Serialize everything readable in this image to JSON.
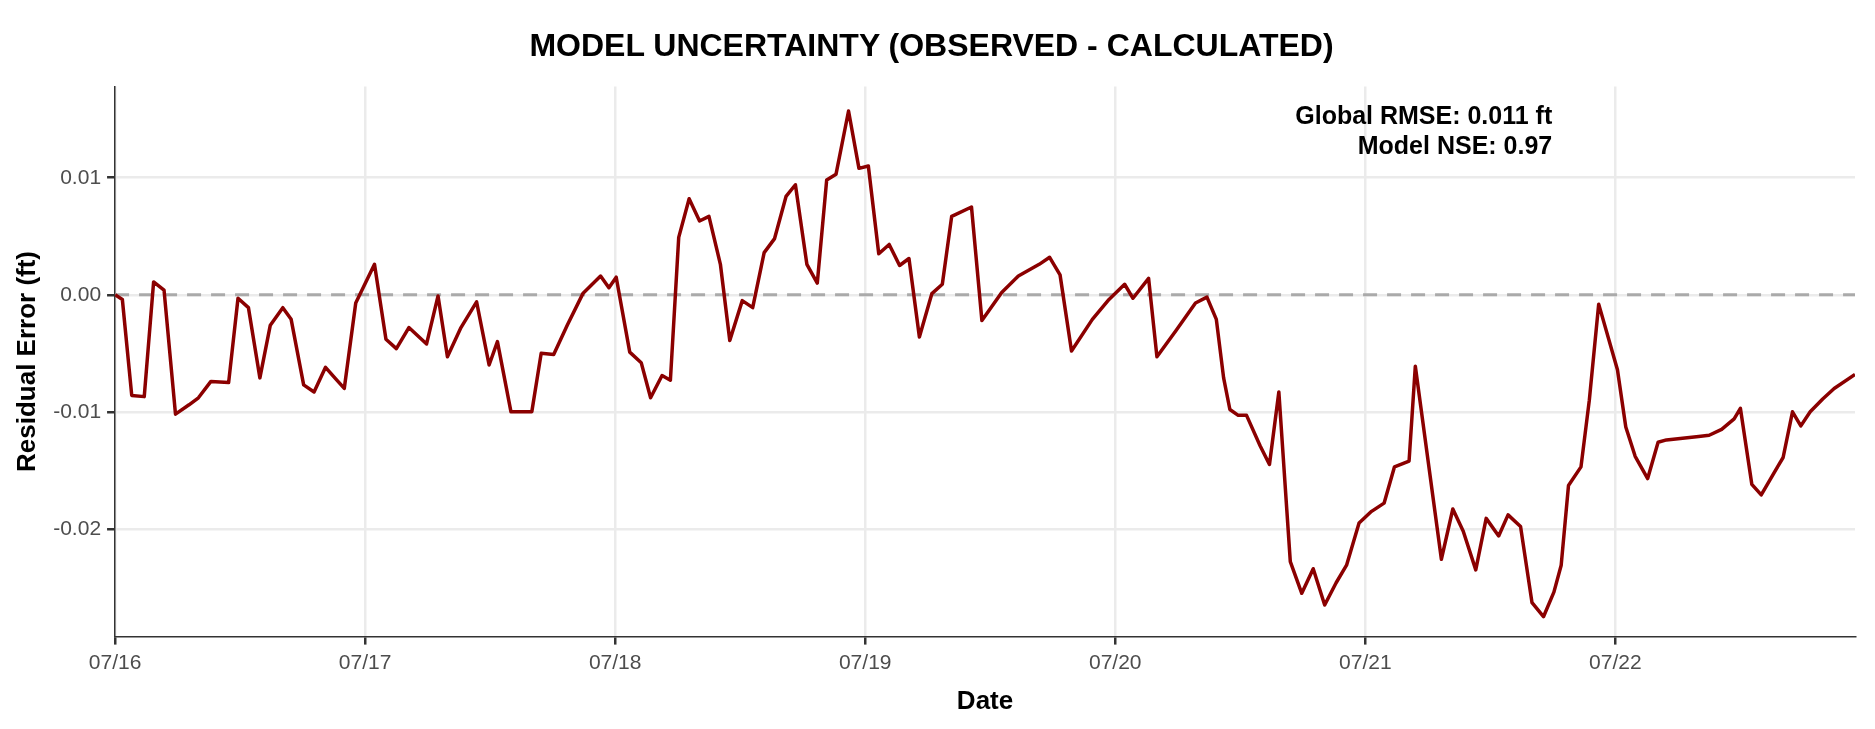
{
  "chart_data": {
    "type": "line",
    "title": "MODEL UNCERTAINTY (OBSERVED - CALCULATED)",
    "xlabel": "Date",
    "ylabel": "Residual Error (ft)",
    "annotations": [
      "Global RMSE: 0.011 ft",
      "Model NSE: 0.97"
    ],
    "x": [
      "--07-16T00:00",
      "--07-16T00:42",
      "--07-16T01:36",
      "--07-16T02:48",
      "--07-16T03:42",
      "--07-16T04:42",
      "--07-16T05:48",
      "--07-16T07:06",
      "--07-16T08:00",
      "--07-16T09:12",
      "--07-16T10:54",
      "--07-16T11:48",
      "--07-16T12:48",
      "--07-16T13:54",
      "--07-16T14:54",
      "--07-16T16:06",
      "--07-16T16:54",
      "--07-16T18:06",
      "--07-16T19:06",
      "--07-16T20:12",
      "--07-16T21:12",
      "--07-16T22:00",
      "--07-16T23:06",
      "--07-17T00:54",
      "--07-17T02:00",
      "--07-17T03:00",
      "--07-17T04:12",
      "--07-17T05:54",
      "--07-17T07:00",
      "--07-17T07:54",
      "--07-17T09:12",
      "--07-17T10:42",
      "--07-17T11:54",
      "--07-17T12:42",
      "--07-17T14:00",
      "--07-17T16:00",
      "--07-17T16:54",
      "--07-17T18:06",
      "--07-17T19:24",
      "--07-17T20:54",
      "--07-17T22:36",
      "--07-17T23:24",
      "--07-18T00:06",
      "--07-18T01:24",
      "--07-18T02:30",
      "--07-18T03:24",
      "--07-18T04:30",
      "--07-18T05:18",
      "--07-18T06:06",
      "--07-18T07:06",
      "--07-18T08:06",
      "--07-18T09:00",
      "--07-18T10:06",
      "--07-18T11:00",
      "--07-18T12:12",
      "--07-18T13:12",
      "--07-18T14:18",
      "--07-18T15:18",
      "--07-18T16:24",
      "--07-18T17:18",
      "--07-18T18:24",
      "--07-18T19:24",
      "--07-18T20:18",
      "--07-18T21:12",
      "--07-18T22:24",
      "--07-18T23:24",
      "--07-19T00:18",
      "--07-19T01:18",
      "--07-19T02:18",
      "--07-19T03:18",
      "--07-19T04:12",
      "--07-19T05:12",
      "--07-19T06:24",
      "--07-19T07:24",
      "--07-19T08:18",
      "--07-19T10:12",
      "--07-19T11:12",
      "--07-19T13:06",
      "--07-19T14:42",
      "--07-19T16:42",
      "--07-19T17:42",
      "--07-19T18:42",
      "--07-19T19:48",
      "--07-19T21:48",
      "--07-19T23:24",
      "--07-20T00:54",
      "--07-20T01:42",
      "--07-20T03:12",
      "--07-20T04:00",
      "--07-20T05:48",
      "--07-20T07:42",
      "--07-20T08:48",
      "--07-20T09:42",
      "--07-20T10:24",
      "--07-20T11:00",
      "--07-20T11:48",
      "--07-20T12:36",
      "--07-20T13:54",
      "--07-20T14:48",
      "--07-20T15:42",
      "--07-20T16:48",
      "--07-20T17:54",
      "--07-20T19:00",
      "--07-20T20:06",
      "--07-20T21:12",
      "--07-20T22:12",
      "--07-20T23:24",
      "--07-21T00:36",
      "--07-21T01:48",
      "--07-21T02:48",
      "--07-21T04:12",
      "--07-21T04:48",
      "--07-21T07:18",
      "--07-21T08:24",
      "--07-21T09:24",
      "--07-21T10:36",
      "--07-21T11:36",
      "--07-21T12:48",
      "--07-21T13:42",
      "--07-21T14:54",
      "--07-21T16:00",
      "--07-21T17:06",
      "--07-21T18:06",
      "--07-21T18:48",
      "--07-21T19:30",
      "--07-21T20:42",
      "--07-21T21:30",
      "--07-21T22:24",
      "--07-22T00:12",
      "--07-22T01:00",
      "--07-22T01:54",
      "--07-22T03:06",
      "--07-22T04:06",
      "--07-22T04:54",
      "--07-22T08:00",
      "--07-22T09:00",
      "--07-22T10:12",
      "--07-22T11:24",
      "--07-22T12:00",
      "--07-22T13:06",
      "--07-22T14:00",
      "--07-22T15:18",
      "--07-22T16:06",
      "--07-22T17:00",
      "--07-22T17:48",
      "--07-22T18:42",
      "--07-22T19:54",
      "--07-22T21:00",
      "--07-22T23:00"
    ],
    "series": [
      {
        "color": "#8b0000",
        "values": [
          0,
          -0.0004,
          -0.0086,
          -0.0087,
          0.0011,
          0.0004,
          -0.0102,
          -0.0094,
          -0.0088,
          -0.0074,
          -0.0075,
          -0.0003,
          -0.0011,
          -0.0071,
          -0.0026,
          -0.0011,
          -0.0021,
          -0.0077,
          -0.0083,
          -0.0062,
          -0.0072,
          -0.008,
          -0.0007,
          0.0026,
          -0.0038,
          -0.0046,
          -0.0028,
          -0.0042,
          -0.0001,
          -0.0053,
          -0.0028,
          -0.0006,
          -0.006,
          -0.004,
          -0.01,
          -0.01,
          -0.005,
          -0.0051,
          -0.0026,
          0.0001,
          0.0016,
          0.0006,
          0.0015,
          -0.0049,
          -0.0058,
          -0.0088,
          -0.0069,
          -0.0073,
          0.0049,
          0.0082,
          0.0063,
          0.0067,
          0.0026,
          -0.0039,
          -0.0005,
          -0.0011,
          0.0036,
          0.0048,
          0.0084,
          0.0094,
          0.0026,
          0.001,
          0.0098,
          0.0103,
          0.0157,
          0.0108,
          0.011,
          0.0035,
          0.0043,
          0.0025,
          0.0031,
          -0.0036,
          0.0001,
          0.0009,
          0.0067,
          0.0075,
          -0.0022,
          0.0002,
          0.0016,
          0.0026,
          0.0032,
          0.0017,
          -0.0048,
          -0.0021,
          -0.0004,
          0.0009,
          -0.0003,
          0.0014,
          -0.0053,
          -0.0031,
          -0.0007,
          -0.0002,
          -0.0021,
          -0.0071,
          -0.0098,
          -0.0103,
          -0.0103,
          -0.0129,
          -0.0145,
          -0.0083,
          -0.0228,
          -0.0255,
          -0.0234,
          -0.0265,
          -0.0246,
          -0.0231,
          -0.0195,
          -0.0185,
          -0.0178,
          -0.0147,
          -0.0142,
          -0.0061,
          -0.0226,
          -0.0183,
          -0.0202,
          -0.0235,
          -0.0191,
          -0.0206,
          -0.0188,
          -0.0198,
          -0.0263,
          -0.0275,
          -0.0254,
          -0.0231,
          -0.0163,
          -0.0147,
          -0.009,
          -0.0008,
          -0.0064,
          -0.0113,
          -0.0138,
          -0.0157,
          -0.0126,
          -0.0124,
          -0.0121,
          -0.012,
          -0.0115,
          -0.0106,
          -0.0097,
          -0.0162,
          -0.0171,
          -0.0151,
          -0.0139,
          -0.01,
          -0.0112,
          -0.01,
          -0.0089,
          -0.008,
          -0.0068
        ]
      }
    ],
    "xlim": [
      "--07-16T00:00",
      "--07-22T23:00"
    ],
    "xticks": [
      {
        "value": "--07-16",
        "label": "07/16"
      },
      {
        "value": "--07-17",
        "label": "07/17"
      },
      {
        "value": "--07-18",
        "label": "07/18"
      },
      {
        "value": "--07-19",
        "label": "07/19"
      },
      {
        "value": "--07-20",
        "label": "07/20"
      },
      {
        "value": "--07-21",
        "label": "07/21"
      },
      {
        "value": "--07-22",
        "label": "07/22"
      }
    ],
    "ylim": [
      -0.0292,
      0.0178
    ],
    "yticks": [
      {
        "value": -0.02,
        "label": "-0.02"
      },
      {
        "value": -0.01,
        "label": "-0.01"
      },
      {
        "value": 0,
        "label": "0.00"
      },
      {
        "value": 0.01,
        "label": "0.01"
      }
    ],
    "ref_lines": [
      {
        "axis": "y",
        "value": 0,
        "color": "#aaaaaa",
        "line_style": "dashed"
      }
    ],
    "grid": true,
    "legend": false,
    "marker": "none",
    "line_style": "solid"
  }
}
